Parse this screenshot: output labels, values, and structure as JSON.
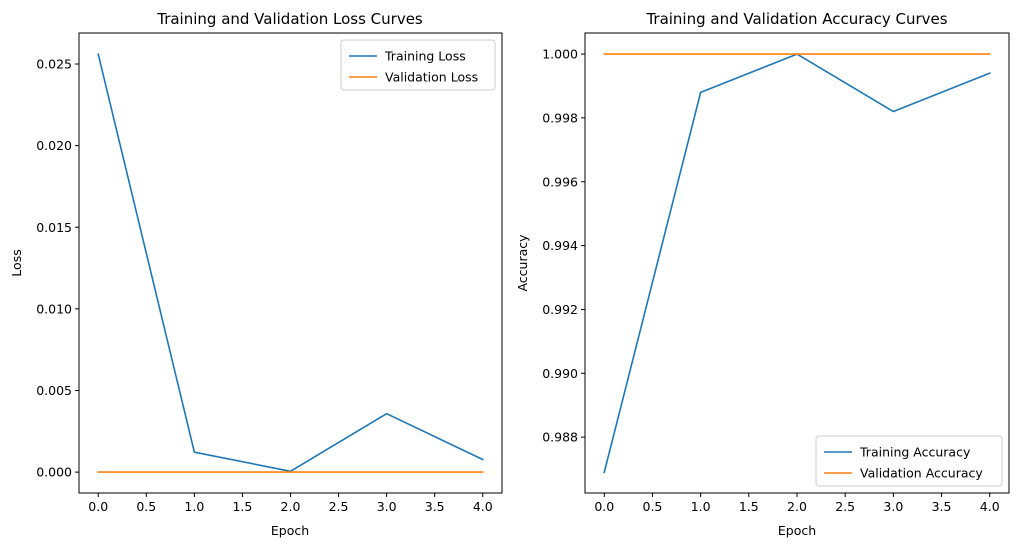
{
  "chart_data": [
    {
      "type": "line",
      "title": "Training and Validation Loss Curves",
      "xlabel": "Epoch",
      "ylabel": "Loss",
      "xlim": [
        -0.2,
        4.2
      ],
      "ylim": [
        -0.00128,
        0.0269
      ],
      "x_ticks": [
        0.0,
        0.5,
        1.0,
        1.5,
        2.0,
        2.5,
        3.0,
        3.5,
        4.0
      ],
      "x_tick_labels": [
        "0.0",
        "0.5",
        "1.0",
        "1.5",
        "2.0",
        "2.5",
        "3.0",
        "3.5",
        "4.0"
      ],
      "y_ticks": [
        0.0,
        0.005,
        0.01,
        0.015,
        0.02,
        0.025
      ],
      "y_tick_labels": [
        "0.000",
        "0.005",
        "0.010",
        "0.015",
        "0.020",
        "0.025"
      ],
      "grid": false,
      "legend_position": "top-right",
      "x": [
        0,
        1,
        2,
        3,
        4
      ],
      "series": [
        {
          "name": "Training Loss",
          "color": "#1f77b4",
          "values": [
            0.0256,
            0.00122,
            5e-05,
            0.00358,
            0.00077
          ]
        },
        {
          "name": "Validation Loss",
          "color": "#ff7f0e",
          "values": [
            0.0,
            0.0,
            0.0,
            0.0,
            0.0
          ]
        }
      ]
    },
    {
      "type": "line",
      "title": "Training and Validation Accuracy Curves",
      "xlabel": "Epoch",
      "ylabel": "Accuracy",
      "xlim": [
        -0.2,
        4.2
      ],
      "ylim": [
        0.98625,
        1.00066
      ],
      "x_ticks": [
        0.0,
        0.5,
        1.0,
        1.5,
        2.0,
        2.5,
        3.0,
        3.5,
        4.0
      ],
      "x_tick_labels": [
        "0.0",
        "0.5",
        "1.0",
        "1.5",
        "2.0",
        "2.5",
        "3.0",
        "3.5",
        "4.0"
      ],
      "y_ticks": [
        0.988,
        0.99,
        0.992,
        0.994,
        0.996,
        0.998,
        1.0
      ],
      "y_tick_labels": [
        "0.988",
        "0.990",
        "0.992",
        "0.994",
        "0.996",
        "0.998",
        "1.000"
      ],
      "grid": false,
      "legend_position": "bottom-right",
      "x": [
        0,
        1,
        2,
        3,
        4
      ],
      "series": [
        {
          "name": "Training Accuracy",
          "color": "#1f77b4",
          "values": [
            0.9869,
            0.9988,
            1.0,
            0.9982,
            0.9994
          ]
        },
        {
          "name": "Validation Accuracy",
          "color": "#ff7f0e",
          "values": [
            1.0,
            1.0,
            1.0,
            1.0,
            1.0
          ]
        }
      ]
    }
  ]
}
